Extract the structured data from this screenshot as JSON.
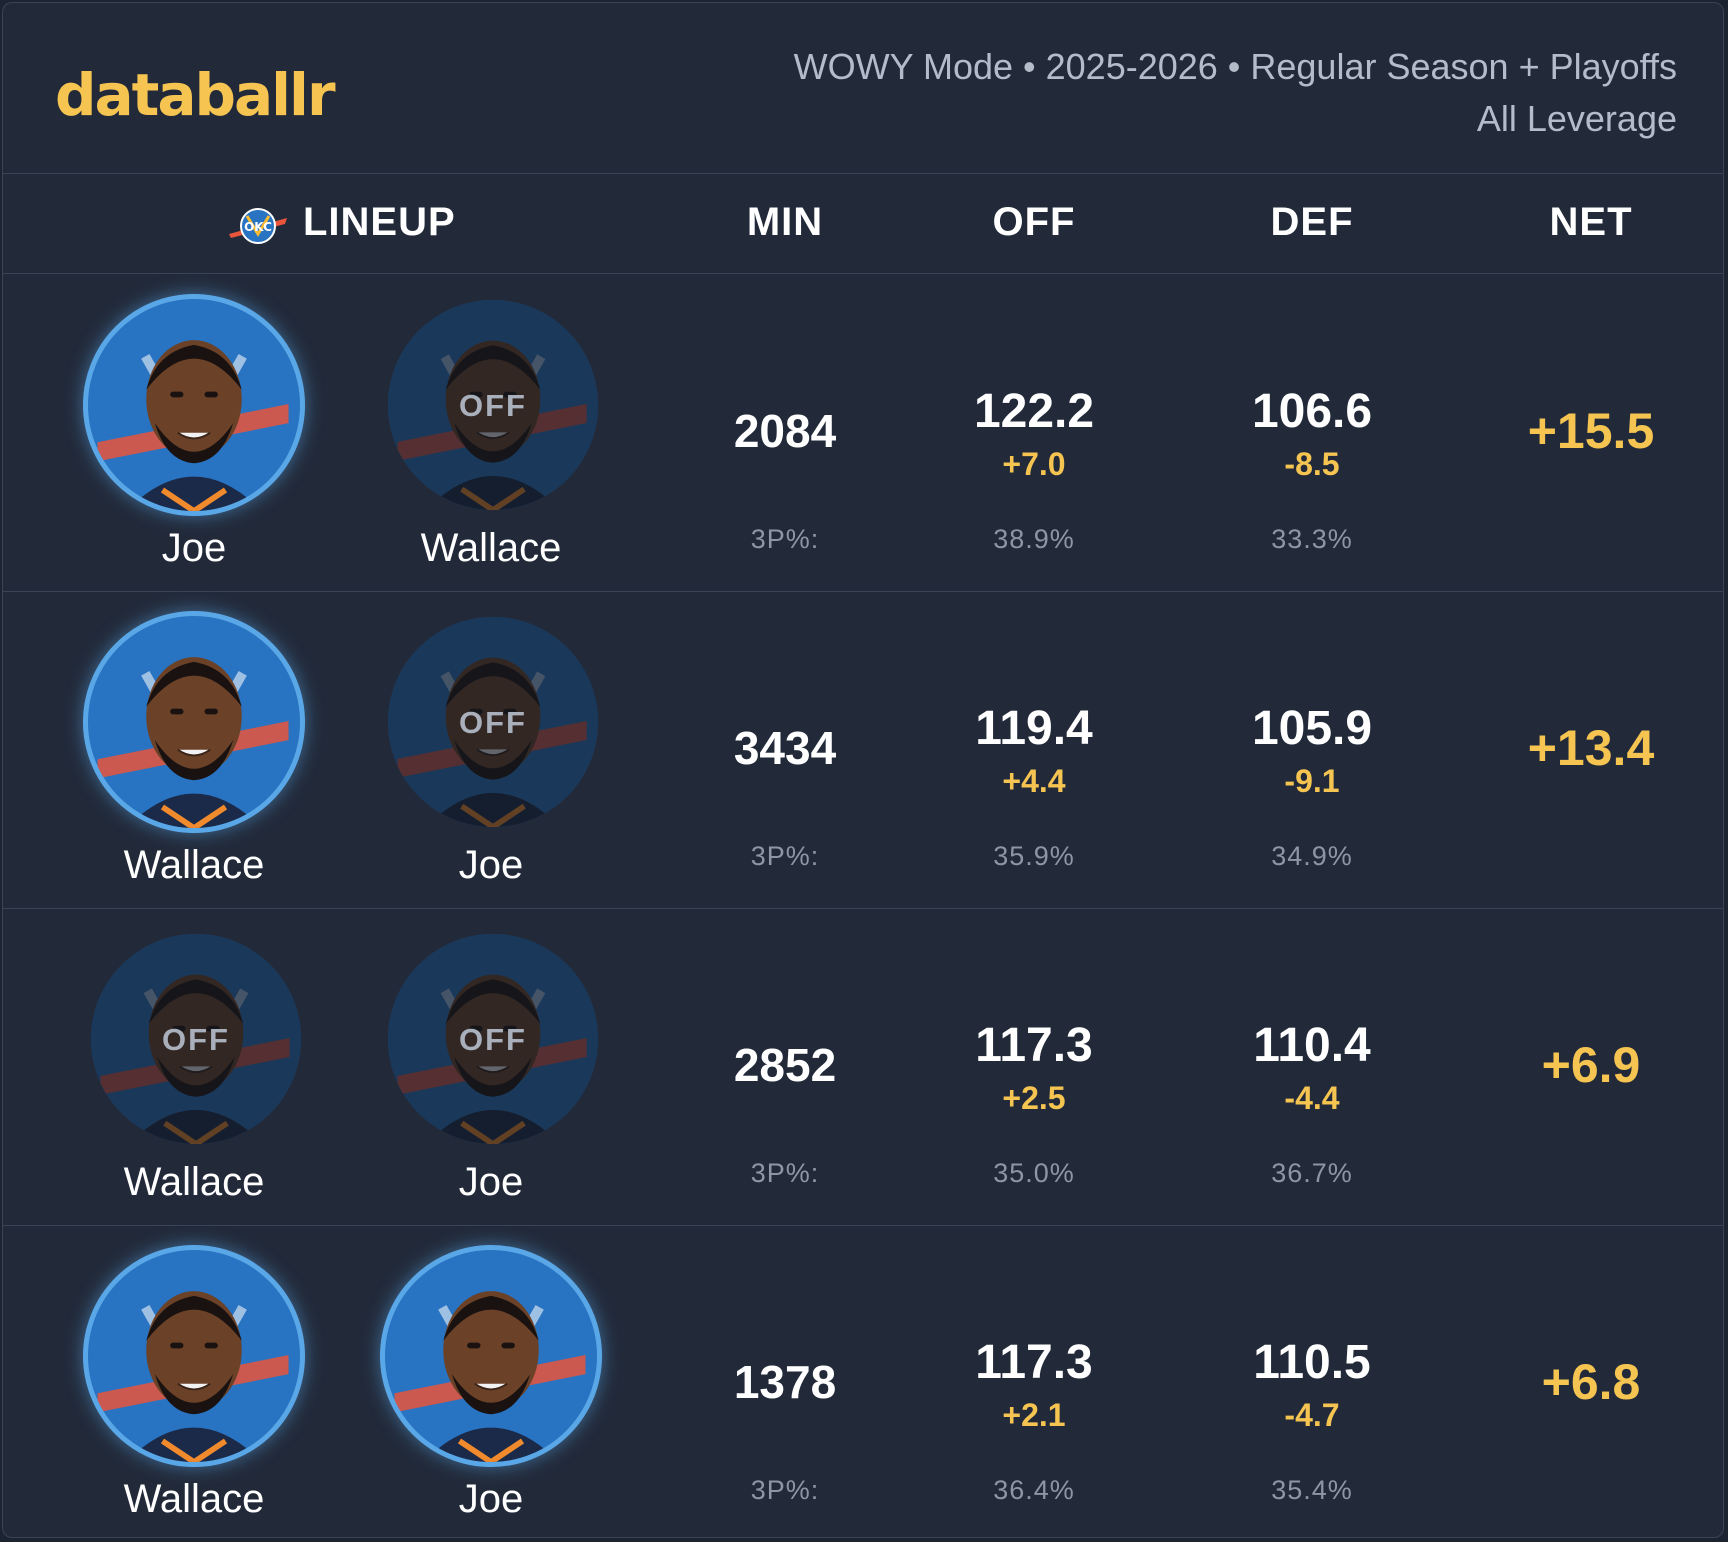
{
  "brand": {
    "logo_text": "databallr"
  },
  "meta": {
    "line1": "WOWY Mode • 2025-2026 • Regular Season + Playoffs",
    "line2": "All Leverage"
  },
  "columns": {
    "lineup": "LINEUP",
    "min": "MIN",
    "off": "OFF",
    "def": "DEF",
    "net": "NET",
    "team_logo_text": "OKC"
  },
  "colors": {
    "accent": "#f5c451",
    "background": "#222a3a",
    "avatar_bg": "#2873c2",
    "on_ring": "#5aa7e8"
  },
  "rows": [
    {
      "players": [
        {
          "name": "Joe",
          "status": "on",
          "off_label": ""
        },
        {
          "name": "Wallace",
          "status": "off",
          "off_label": "OFF"
        }
      ],
      "min": "2084",
      "min_sub": "3P%:",
      "off": "122.2",
      "off_diff": "+7.0",
      "off_3p": "38.9%",
      "def": "106.6",
      "def_diff": "-8.5",
      "def_3p": "33.3%",
      "net": "+15.5"
    },
    {
      "players": [
        {
          "name": "Wallace",
          "status": "on",
          "off_label": ""
        },
        {
          "name": "Joe",
          "status": "off",
          "off_label": "OFF"
        }
      ],
      "min": "3434",
      "min_sub": "3P%:",
      "off": "119.4",
      "off_diff": "+4.4",
      "off_3p": "35.9%",
      "def": "105.9",
      "def_diff": "-9.1",
      "def_3p": "34.9%",
      "net": "+13.4"
    },
    {
      "players": [
        {
          "name": "Wallace",
          "status": "off",
          "off_label": "OFF"
        },
        {
          "name": "Joe",
          "status": "off",
          "off_label": "OFF"
        }
      ],
      "min": "2852",
      "min_sub": "3P%:",
      "off": "117.3",
      "off_diff": "+2.5",
      "off_3p": "35.0%",
      "def": "110.4",
      "def_diff": "-4.4",
      "def_3p": "36.7%",
      "net": "+6.9"
    },
    {
      "players": [
        {
          "name": "Wallace",
          "status": "on",
          "off_label": ""
        },
        {
          "name": "Joe",
          "status": "on",
          "off_label": ""
        }
      ],
      "min": "1378",
      "min_sub": "3P%:",
      "off": "117.3",
      "off_diff": "+2.1",
      "off_3p": "36.4%",
      "def": "110.5",
      "def_diff": "-4.7",
      "def_3p": "35.4%",
      "net": "+6.8"
    }
  ]
}
